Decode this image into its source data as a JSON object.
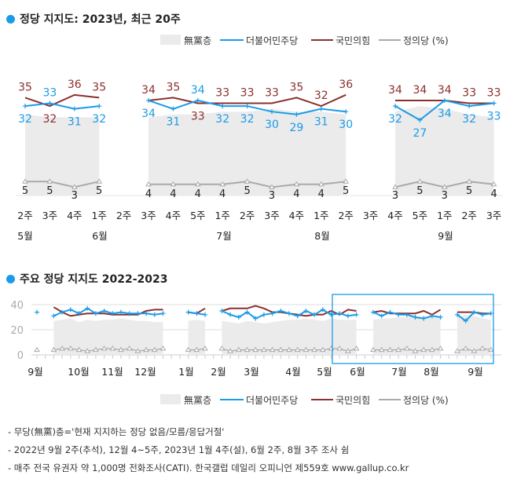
{
  "chart_data": [
    {
      "type": "line",
      "title": "정당 지지도: 2023년, 최근 20주",
      "legend": {
        "items": [
          "無黨층",
          "더불어민주당",
          "국민의힘",
          "정의당"
        ],
        "unit": "(%)",
        "placement": "top-right"
      },
      "colors": {
        "무당층": "#ebebeb",
        "더불어민주당": "#1a9be8",
        "국민의힘": "#8b2f2f",
        "정의당": "#aaaaaa"
      },
      "x_ticks": [
        "2주",
        "3주",
        "4주",
        "1주",
        "2주",
        "3주",
        "4주",
        "5주",
        "1주",
        "2주",
        "3주",
        "4주",
        "1주",
        "2주",
        "3주",
        "4주",
        "5주",
        "1주",
        "2주",
        "3주"
      ],
      "months": [
        "5월",
        "6월",
        "7월",
        "8월",
        "9월"
      ],
      "series": [
        {
          "name": "국민의힘",
          "values": [
            35,
            32,
            36,
            35,
            null,
            34,
            35,
            33,
            33,
            33,
            33,
            35,
            32,
            36,
            null,
            34,
            34,
            34,
            33,
            33
          ]
        },
        {
          "name": "더불어민주당",
          "values": [
            32,
            33,
            31,
            32,
            null,
            34,
            31,
            34,
            32,
            32,
            30,
            29,
            31,
            30,
            null,
            32,
            27,
            34,
            32,
            33
          ]
        },
        {
          "name": "정의당",
          "values": [
            5,
            5,
            3,
            5,
            null,
            4,
            4,
            4,
            4,
            5,
            3,
            4,
            4,
            5,
            null,
            3,
            5,
            3,
            5,
            4
          ]
        },
        {
          "name": "無黨층",
          "values": [
            29,
            28,
            28,
            28,
            null,
            28,
            29,
            29,
            30,
            30,
            31,
            30,
            30,
            29,
            null,
            30,
            32,
            31,
            29,
            28
          ]
        }
      ]
    },
    {
      "type": "line",
      "title": "주요 정당 지지도 2022-2023",
      "y_ticks": [
        "40",
        "20",
        "0"
      ],
      "ylim": [
        0,
        40
      ],
      "grid": true,
      "months": [
        "9월",
        "10월",
        "11월",
        "12월",
        "1월",
        "2월",
        "3월",
        "4월",
        "5월",
        "6월",
        "7월",
        "8월",
        "9월"
      ],
      "legend": {
        "items": [
          "無黨층",
          "더불어민주당",
          "국민의힘",
          "정의당"
        ],
        "unit": "(%)",
        "placement": "bottom-right"
      },
      "series": [
        {
          "name": "국민의힘",
          "values": [
            null,
            null,
            38,
            34,
            31,
            32,
            33,
            33,
            33,
            32,
            32,
            32,
            32,
            35,
            36,
            36,
            null,
            null,
            34,
            33,
            37,
            null,
            35,
            37,
            37,
            37,
            39,
            37,
            34,
            34,
            33,
            32,
            31,
            32,
            32,
            35,
            32,
            36,
            35,
            null,
            34,
            35,
            33,
            33,
            33,
            33,
            35,
            32,
            36,
            null,
            34,
            34,
            34,
            33,
            33
          ]
        },
        {
          "name": "더불어민주당",
          "values": [
            34,
            null,
            31,
            34,
            36,
            33,
            37,
            33,
            35,
            33,
            34,
            33,
            33,
            33,
            32,
            33,
            null,
            null,
            34,
            33,
            32,
            null,
            35,
            32,
            30,
            34,
            29,
            32,
            33,
            35,
            33,
            31,
            35,
            32,
            36,
            32,
            33,
            31,
            32,
            null,
            34,
            31,
            34,
            32,
            32,
            30,
            29,
            31,
            30,
            null,
            32,
            27,
            34,
            32,
            33
          ]
        },
        {
          "name": "정의당",
          "values": [
            4,
            null,
            4,
            5,
            5,
            4,
            3,
            4,
            5,
            5,
            4,
            5,
            3,
            4,
            4,
            5,
            null,
            null,
            4,
            4,
            5,
            null,
            5,
            3,
            4,
            4,
            4,
            4,
            4,
            4,
            4,
            4,
            4,
            4,
            4,
            5,
            5,
            3,
            5,
            null,
            4,
            4,
            4,
            4,
            5,
            3,
            4,
            4,
            5,
            null,
            3,
            5,
            3,
            5,
            4
          ]
        },
        {
          "name": "無黨층",
          "values": [
            null,
            null,
            27,
            28,
            29,
            26,
            28,
            27,
            28,
            28,
            29,
            28,
            27,
            27,
            26,
            26,
            null,
            null,
            27,
            28,
            27,
            null,
            27,
            26,
            25,
            27,
            26,
            25,
            26,
            27,
            28,
            28,
            29,
            28,
            27,
            29,
            28,
            28,
            28,
            null,
            28,
            29,
            29,
            30,
            30,
            31,
            30,
            30,
            29,
            null,
            30,
            32,
            31,
            29,
            28
          ]
        }
      ]
    }
  ],
  "notes": [
    "- 무당(無黨)층='현재 지지하는 정당 없음/모름/응답거절'",
    "- 2022년 9월 2주(추석), 12월 4~5주, 2023년 1월 4주(설), 6월 2주, 8월 3주 조사 쉼",
    "- 매주 전국 유권자 약 1,000명 전화조사(CATI). 한국갤럽 데일리 오피니언 제559호 www.gallup.co.kr"
  ]
}
